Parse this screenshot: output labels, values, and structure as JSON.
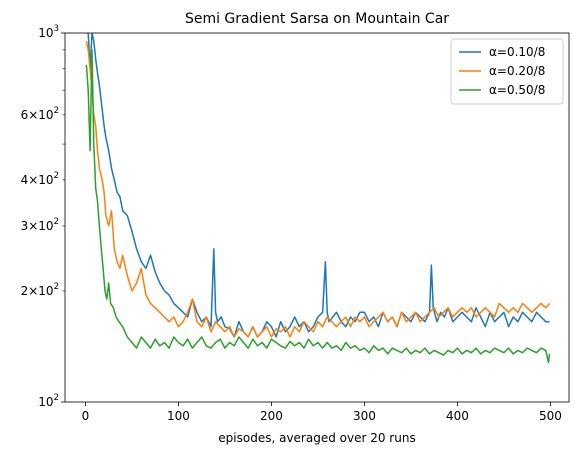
{
  "chart_data": {
    "type": "line",
    "title": "Semi Gradient Sarsa on Mountain Car",
    "xlabel": "episodes, averaged over 20 runs",
    "ylabel": "",
    "xlim": [
      -22,
      520
    ],
    "ylim": [
      100,
      1000
    ],
    "yscale": "log",
    "grid": false,
    "legend_position": "top-right",
    "x_ticks": [
      0,
      100,
      200,
      300,
      400,
      500
    ],
    "x_tick_labels": [
      "0",
      "100",
      "200",
      "300",
      "400",
      "500"
    ],
    "y_major_ticks": [
      100,
      1000
    ],
    "y_major_tick_labels": [
      {
        "base": "10",
        "exp": "2"
      },
      {
        "base": "10",
        "exp": "3"
      }
    ],
    "y_minor_ticks": [
      200,
      300,
      400,
      500,
      600,
      700,
      800,
      900
    ],
    "y_minor_tick_labels": [
      {
        "value": 200,
        "mant": "2",
        "base": "10",
        "exp": "2"
      },
      {
        "value": 300,
        "mant": "3",
        "base": "10",
        "exp": "2"
      },
      {
        "value": 400,
        "mant": "4",
        "base": "10",
        "exp": "2"
      },
      {
        "value": 600,
        "mant": "6",
        "base": "10",
        "exp": "2"
      }
    ],
    "series": [
      {
        "name": "α=0.10/8",
        "color": "#1f77b4",
        "x": [
          1,
          3,
          5,
          7,
          9,
          11,
          13,
          15,
          18,
          20,
          22,
          25,
          28,
          31,
          34,
          37,
          40,
          45,
          50,
          55,
          60,
          65,
          70,
          75,
          80,
          85,
          90,
          95,
          100,
          105,
          110,
          115,
          120,
          125,
          130,
          135,
          138,
          140,
          142,
          146,
          150,
          155,
          160,
          165,
          170,
          175,
          180,
          185,
          190,
          195,
          200,
          205,
          210,
          215,
          220,
          225,
          230,
          235,
          240,
          245,
          250,
          255,
          258,
          260,
          262,
          266,
          270,
          275,
          280,
          285,
          290,
          295,
          300,
          305,
          310,
          315,
          320,
          325,
          330,
          335,
          340,
          345,
          350,
          355,
          360,
          365,
          370,
          372,
          374,
          378,
          382,
          386,
          390,
          395,
          400,
          405,
          410,
          415,
          420,
          425,
          430,
          435,
          440,
          445,
          450,
          455,
          460,
          465,
          470,
          475,
          480,
          485,
          490,
          495,
          499
        ],
        "y": [
          1000,
          1000,
          800,
          1000,
          950,
          850,
          780,
          720,
          620,
          560,
          520,
          480,
          430,
          400,
          370,
          360,
          330,
          320,
          290,
          260,
          240,
          230,
          250,
          225,
          210,
          200,
          195,
          185,
          180,
          175,
          170,
          190,
          175,
          165,
          170,
          160,
          260,
          175,
          165,
          170,
          160,
          158,
          150,
          165,
          155,
          150,
          160,
          150,
          155,
          165,
          160,
          150,
          165,
          155,
          160,
          170,
          160,
          165,
          155,
          160,
          170,
          175,
          240,
          175,
          165,
          170,
          175,
          165,
          160,
          170,
          165,
          175,
          175,
          165,
          170,
          160,
          175,
          165,
          170,
          160,
          175,
          170,
          165,
          175,
          170,
          165,
          175,
          235,
          180,
          165,
          175,
          170,
          180,
          165,
          170,
          175,
          170,
          165,
          180,
          170,
          160,
          175,
          165,
          170,
          175,
          160,
          170,
          165,
          175,
          170,
          165,
          175,
          170,
          165,
          165
        ]
      },
      {
        "name": "α=0.20/8",
        "color": "#ff7f0e",
        "x": [
          1,
          3,
          5,
          7,
          9,
          11,
          13,
          15,
          18,
          20,
          22,
          25,
          28,
          31,
          34,
          37,
          40,
          45,
          50,
          55,
          60,
          65,
          70,
          75,
          80,
          85,
          90,
          95,
          100,
          105,
          110,
          115,
          120,
          125,
          130,
          135,
          140,
          145,
          150,
          155,
          160,
          165,
          170,
          175,
          180,
          185,
          190,
          195,
          200,
          205,
          210,
          215,
          220,
          225,
          230,
          235,
          240,
          245,
          250,
          255,
          260,
          265,
          270,
          275,
          280,
          285,
          290,
          295,
          300,
          305,
          310,
          315,
          320,
          325,
          330,
          335,
          340,
          345,
          350,
          355,
          360,
          365,
          370,
          375,
          380,
          385,
          390,
          395,
          400,
          405,
          410,
          415,
          420,
          425,
          430,
          435,
          440,
          445,
          450,
          455,
          460,
          465,
          470,
          475,
          480,
          485,
          490,
          495,
          499
        ],
        "y": [
          950,
          900,
          800,
          700,
          600,
          560,
          480,
          430,
          400,
          370,
          320,
          300,
          330,
          260,
          240,
          230,
          250,
          220,
          200,
          210,
          230,
          195,
          185,
          180,
          175,
          170,
          165,
          170,
          160,
          165,
          175,
          190,
          165,
          160,
          170,
          155,
          165,
          160,
          155,
          160,
          150,
          158,
          155,
          150,
          160,
          150,
          155,
          160,
          150,
          158,
          155,
          160,
          150,
          160,
          155,
          165,
          160,
          155,
          165,
          160,
          170,
          165,
          160,
          165,
          170,
          160,
          170,
          165,
          170,
          160,
          165,
          170,
          175,
          165,
          170,
          160,
          175,
          165,
          170,
          175,
          165,
          170,
          175,
          180,
          170,
          175,
          180,
          170,
          175,
          180,
          175,
          180,
          170,
          175,
          180,
          175,
          170,
          185,
          180,
          175,
          180,
          175,
          185,
          180,
          175,
          180,
          185,
          180,
          185
        ]
      },
      {
        "name": "α=0.50/8",
        "color": "#2ca02c",
        "x": [
          1,
          3,
          5,
          7,
          9,
          11,
          13,
          15,
          17,
          19,
          21,
          23,
          25,
          27,
          30,
          33,
          36,
          40,
          45,
          50,
          55,
          60,
          65,
          70,
          75,
          80,
          85,
          90,
          95,
          100,
          105,
          110,
          115,
          120,
          125,
          130,
          135,
          140,
          145,
          150,
          155,
          160,
          165,
          170,
          175,
          180,
          185,
          190,
          195,
          200,
          205,
          210,
          215,
          220,
          225,
          230,
          235,
          240,
          245,
          250,
          255,
          260,
          265,
          270,
          275,
          280,
          285,
          290,
          295,
          300,
          305,
          310,
          315,
          320,
          325,
          330,
          335,
          340,
          345,
          350,
          355,
          360,
          365,
          370,
          375,
          380,
          385,
          390,
          395,
          400,
          405,
          410,
          415,
          420,
          425,
          430,
          435,
          440,
          445,
          450,
          455,
          460,
          465,
          470,
          475,
          480,
          485,
          490,
          495,
          498,
          499
        ],
        "y": [
          820,
          700,
          480,
          900,
          500,
          380,
          350,
          300,
          260,
          230,
          200,
          190,
          210,
          185,
          180,
          170,
          165,
          160,
          150,
          145,
          140,
          150,
          145,
          140,
          148,
          142,
          145,
          140,
          150,
          145,
          142,
          148,
          140,
          145,
          150,
          142,
          140,
          145,
          148,
          140,
          145,
          142,
          150,
          145,
          140,
          148,
          142,
          145,
          140,
          148,
          145,
          142,
          140,
          146,
          142,
          145,
          140,
          148,
          142,
          145,
          140,
          145,
          140,
          142,
          138,
          145,
          140,
          142,
          138,
          140,
          136,
          142,
          138,
          140,
          135,
          140,
          138,
          136,
          140,
          135,
          138,
          136,
          140,
          135,
          138,
          136,
          134,
          138,
          136,
          140,
          135,
          138,
          136,
          140,
          135,
          138,
          136,
          140,
          138,
          136,
          140,
          135,
          138,
          136,
          140,
          138,
          136,
          140,
          138,
          128,
          135
        ]
      }
    ]
  }
}
